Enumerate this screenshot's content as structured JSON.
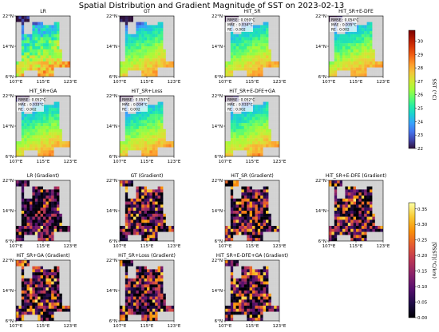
{
  "title": "Spatial Distribution and Gradient Magnitude of SST on 2023-02-13",
  "colors": {
    "land": "#d3d3d3",
    "sst_cmap": [
      "#30123b",
      "#4145ab",
      "#4675ed",
      "#39a2fc",
      "#1bcfd4",
      "#24eca6",
      "#61fc6c",
      "#a4fc3b",
      "#d1e834",
      "#f3c63a",
      "#fe9b2d",
      "#f36315",
      "#d93806",
      "#b11901",
      "#7a0402"
    ],
    "grad_cmap": [
      "#000004",
      "#1f0c48",
      "#550f6d",
      "#88226a",
      "#ba3655",
      "#e35933",
      "#f98e09",
      "#f8c932",
      "#fcffa4"
    ]
  },
  "chart_data": [
    {
      "type": "heatmap",
      "group": "SST",
      "panels": [
        {
          "title": "LR"
        },
        {
          "title": "GT"
        },
        {
          "title": "HiT_SR",
          "metrics": [
            "RMSE : 0.050°C",
            "MAE : 0.034°C",
            "RE : 0.002"
          ]
        },
        {
          "title": "HiT_SR+E-DFE",
          "metrics": [
            "RMSE : 0.054°C",
            "MAE : 0.035°C",
            "RE : 0.002"
          ]
        },
        {
          "title": "HiT_SR+GA",
          "metrics": [
            "RMSE : 0.052°C",
            "MAE : 0.033°C",
            "RE : 0.002"
          ]
        },
        {
          "title": "HiT_SR+Loss",
          "metrics": [
            "RMSE : 0.050°C",
            "MAE : 0.034°C",
            "RE : 0.002"
          ]
        },
        {
          "title": "HiT_SR+E-DFE+GA",
          "metrics": [
            "RMSE : 0.052°C",
            "MAE : 0.033°C",
            "RE : 0.002"
          ]
        }
      ],
      "x_ticks": [
        "107°E",
        "115°E",
        "123°E"
      ],
      "y_ticks": [
        "22°N",
        "14°N",
        "6°N"
      ],
      "x_range": [
        107,
        123
      ],
      "y_range": [
        6,
        22
      ],
      "colorbar": {
        "label": "SST (°C)",
        "range": [
          22,
          30.8
        ],
        "ticks": [
          22,
          23,
          24,
          25,
          26,
          27,
          28,
          29,
          30
        ],
        "cmap": "turbo"
      }
    },
    {
      "type": "heatmap",
      "group": "Gradient",
      "panels": [
        {
          "title": "LR (Gradient)"
        },
        {
          "title": "GT (Gradient)"
        },
        {
          "title": "HiT_SR (Gradient)"
        },
        {
          "title": "HiT_SR+E-DFE (Gradient)"
        },
        {
          "title": "HiT_SR+GA (Gradient)"
        },
        {
          "title": "HiT_SR+Loss (Gradient)"
        },
        {
          "title": "HiT_SR+E-DFE+GA (Gradient)"
        }
      ],
      "x_ticks": [
        "107°E",
        "115°E",
        "123°E"
      ],
      "y_ticks": [
        "22°N",
        "14°N",
        "6°N"
      ],
      "x_range": [
        107,
        123
      ],
      "y_range": [
        6,
        22
      ],
      "colorbar": {
        "label": "|∇SST|(°C/km)",
        "range": [
          0,
          0.37
        ],
        "ticks": [
          "0.00",
          "0.05",
          "0.10",
          "0.15",
          "0.20",
          "0.25",
          "0.30",
          "0.35"
        ],
        "cmap": "inferno"
      }
    }
  ]
}
